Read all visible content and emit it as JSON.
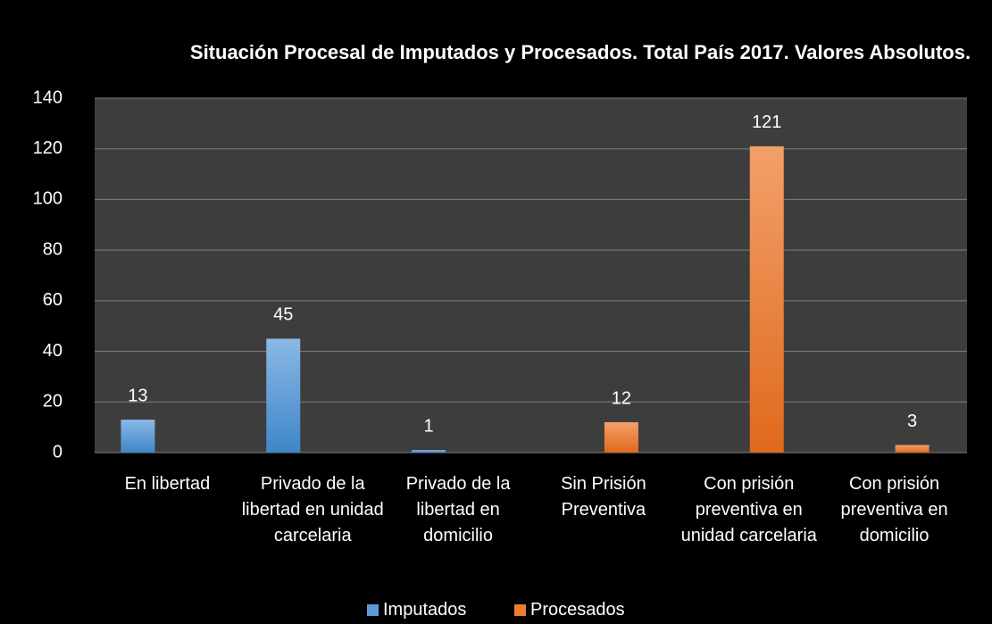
{
  "chart_data": {
    "type": "bar",
    "title": "Situación Procesal de Imputados y Procesados. Total País 2017. Valores Absolutos.",
    "categories": [
      "En libertad",
      "Privado de la libertad en unidad carcelaria",
      "Privado de la libertad en domicilio",
      "Sin Prisión Preventiva",
      "Con prisión preventiva en unidad carcelaria",
      "Con prisión preventiva en domicilio"
    ],
    "series": [
      {
        "name": "Imputados",
        "color": "#5b9bd5",
        "values": [
          13,
          45,
          1,
          null,
          null,
          null
        ]
      },
      {
        "name": "Procesados",
        "color": "#ed7d31",
        "values": [
          null,
          null,
          null,
          12,
          121,
          3
        ]
      }
    ],
    "ylim": [
      0,
      140
    ],
    "yticks": [
      0,
      20,
      40,
      60,
      80,
      100,
      120,
      140
    ],
    "grid": true,
    "legend": "bottom"
  }
}
